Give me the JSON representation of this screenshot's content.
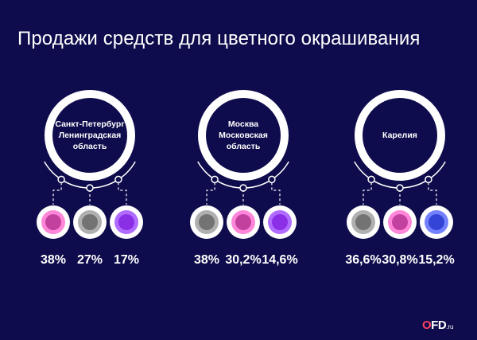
{
  "title": "Продажи средств для цветного окрашивания",
  "colors": {
    "background": "#0e0c4c",
    "ring": "#ffffff",
    "dashed": "#ffffff",
    "logo_accent": "#ff3f5f"
  },
  "logo": {
    "letter_o": "O",
    "rest": "FD",
    "suffix": ".ru"
  },
  "chart_data": {
    "type": "bar",
    "title": "Продажи средств для цветного окрашивания",
    "xlabel": "",
    "ylabel": "",
    "groups": [
      {
        "region_lines": [
          "Санкт-Петербург",
          "Ленинградская",
          "область"
        ],
        "items": [
          {
            "value": 38,
            "label": "38%",
            "color": "#c2419e",
            "ring_color": "#ff86d8"
          },
          {
            "value": 27,
            "label": "27%",
            "color": "#737373",
            "ring_color": "#b0b0b0"
          },
          {
            "value": 17,
            "label": "17%",
            "color": "#8b2fe6",
            "ring_color": "#b06bff"
          }
        ]
      },
      {
        "region_lines": [
          "Москва",
          "Московская",
          "область"
        ],
        "items": [
          {
            "value": 38,
            "label": "38%",
            "color": "#737373",
            "ring_color": "#b0b0b0"
          },
          {
            "value": 30.2,
            "label": "30,2%",
            "color": "#c2419e",
            "ring_color": "#ff86d8"
          },
          {
            "value": 14.6,
            "label": "14,6%",
            "color": "#8b2fe6",
            "ring_color": "#b06bff"
          }
        ]
      },
      {
        "region_lines": [
          "Карелия"
        ],
        "items": [
          {
            "value": 36.6,
            "label": "36,6%",
            "color": "#737373",
            "ring_color": "#b0b0b0"
          },
          {
            "value": 30.8,
            "label": "30,8%",
            "color": "#c2419e",
            "ring_color": "#ff86d8"
          },
          {
            "value": 15.2,
            "label": "15,2%",
            "color": "#3344d6",
            "ring_color": "#7381ff"
          }
        ]
      }
    ]
  }
}
